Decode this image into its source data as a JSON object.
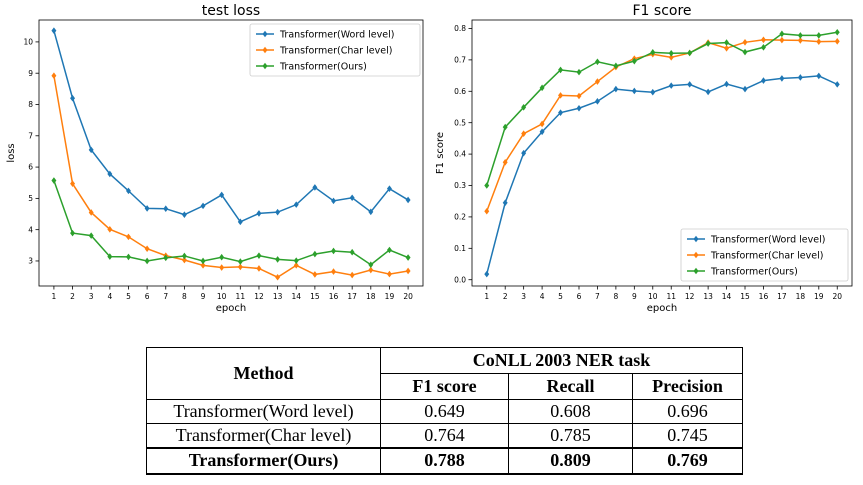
{
  "colors": {
    "word": "#1f77b4",
    "char": "#ff7f0e",
    "ours": "#2ca02c"
  },
  "chart_data": [
    {
      "type": "line",
      "title": "test loss",
      "xlabel": "epoch",
      "ylabel": "loss",
      "x": [
        1,
        2,
        3,
        4,
        5,
        6,
        7,
        8,
        9,
        10,
        11,
        12,
        13,
        14,
        15,
        16,
        17,
        18,
        19,
        20
      ],
      "xlim": [
        0.2,
        20.8
      ],
      "ylim": [
        2.2,
        10.7
      ],
      "yticks": [
        3,
        4,
        5,
        6,
        7,
        8,
        9,
        10
      ],
      "marker": "diamond",
      "legend_position": "top-right",
      "series": [
        {
          "name": "Transformer(Word level)",
          "color": "#1f77b4",
          "values": [
            10.36,
            8.2,
            6.55,
            5.78,
            5.24,
            4.68,
            4.67,
            4.48,
            4.76,
            5.11,
            4.25,
            4.52,
            4.56,
            4.8,
            5.35,
            4.92,
            5.02,
            4.57,
            5.31,
            4.95
          ]
        },
        {
          "name": "Transformer(Char level)",
          "color": "#ff7f0e",
          "values": [
            8.92,
            5.47,
            4.55,
            4.01,
            3.77,
            3.39,
            3.17,
            3.03,
            2.86,
            2.79,
            2.81,
            2.76,
            2.48,
            2.86,
            2.57,
            2.66,
            2.55,
            2.71,
            2.58,
            2.68
          ]
        },
        {
          "name": "Transformer(Ours)",
          "color": "#2ca02c",
          "values": [
            5.57,
            3.89,
            3.81,
            3.14,
            3.13,
            3.0,
            3.1,
            3.16,
            3.0,
            3.12,
            2.98,
            3.17,
            3.05,
            3.01,
            3.22,
            3.32,
            3.28,
            2.88,
            3.35,
            3.11
          ]
        }
      ]
    },
    {
      "type": "line",
      "title": "F1 score",
      "xlabel": "epoch",
      "ylabel": "F1 score",
      "x": [
        1,
        2,
        3,
        4,
        5,
        6,
        7,
        8,
        9,
        10,
        11,
        12,
        13,
        14,
        15,
        16,
        17,
        18,
        19,
        20
      ],
      "xlim": [
        0.2,
        20.8
      ],
      "ylim": [
        -0.02,
        0.827
      ],
      "yticks": [
        0.0,
        0.1,
        0.2,
        0.3,
        0.4,
        0.5,
        0.6,
        0.7,
        0.8
      ],
      "marker": "diamond",
      "legend_position": "bottom-right",
      "series": [
        {
          "name": "Transformer(Word level)",
          "color": "#1f77b4",
          "values": [
            0.018,
            0.245,
            0.403,
            0.471,
            0.532,
            0.546,
            0.568,
            0.607,
            0.601,
            0.597,
            0.618,
            0.622,
            0.598,
            0.623,
            0.607,
            0.634,
            0.641,
            0.644,
            0.649,
            0.622
          ]
        },
        {
          "name": "Transformer(Char level)",
          "color": "#ff7f0e",
          "values": [
            0.218,
            0.374,
            0.465,
            0.496,
            0.587,
            0.585,
            0.631,
            0.677,
            0.704,
            0.718,
            0.708,
            0.722,
            0.755,
            0.737,
            0.756,
            0.764,
            0.763,
            0.762,
            0.758,
            0.759
          ]
        },
        {
          "name": "Transformer(Ours)",
          "color": "#2ca02c",
          "values": [
            0.3,
            0.486,
            0.549,
            0.611,
            0.668,
            0.661,
            0.694,
            0.681,
            0.696,
            0.724,
            0.721,
            0.722,
            0.752,
            0.755,
            0.725,
            0.74,
            0.783,
            0.778,
            0.778,
            0.788
          ]
        }
      ]
    }
  ],
  "table": {
    "method_header": "Method",
    "task_header": "CoNLL 2003 NER task",
    "columns": [
      "F1 score",
      "Recall",
      "Precision"
    ],
    "rows": [
      {
        "method": "Transformer(Word level)",
        "values": [
          "0.649",
          "0.608",
          "0.696"
        ]
      },
      {
        "method": "Transformer(Char level)",
        "values": [
          "0.764",
          "0.785",
          "0.745"
        ]
      },
      {
        "method": "Transformer(Ours)",
        "values": [
          "0.788",
          "0.809",
          "0.769"
        ]
      }
    ]
  }
}
